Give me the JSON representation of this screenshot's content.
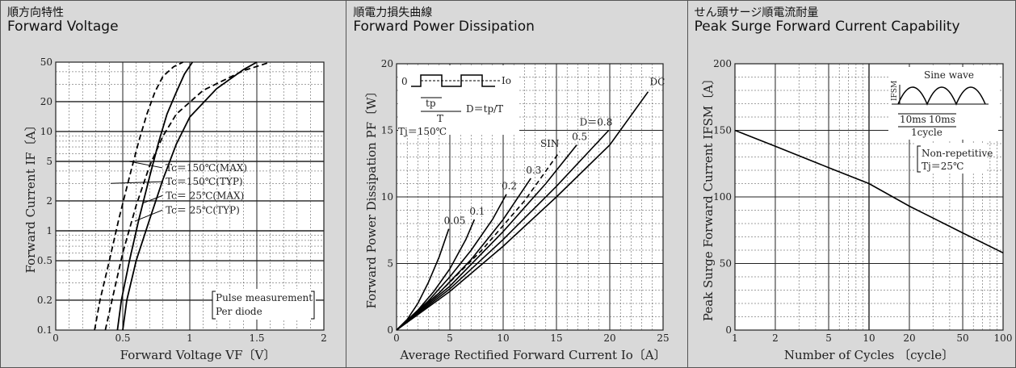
{
  "chart_data": [
    {
      "type": "line",
      "title_jp": "順方向特性",
      "title": "Forward Voltage",
      "xlabel": "Forward Voltage  VF〔V〕",
      "ylabel": "Forward Current  IF〔A〕",
      "xlim": [
        0,
        2
      ],
      "ylim": [
        0.1,
        50
      ],
      "ylog": true,
      "xticks": [
        "0",
        "0.5",
        "1",
        "1.5",
        "2"
      ],
      "yticks": [
        "0.1",
        "0.2",
        "0.5",
        "1",
        "2",
        "5",
        "10",
        "20",
        "50"
      ],
      "ytick_values": [
        0.1,
        0.2,
        0.5,
        1,
        2,
        5,
        10,
        20,
        50
      ],
      "xtick_values": [
        0,
        0.5,
        1,
        1.5,
        2
      ],
      "series": [
        {
          "name": "Tc＝150℃(MAX)",
          "dash": true,
          "x": [
            0.37,
            0.42,
            0.5,
            0.6,
            0.7,
            0.8,
            0.9,
            1.1,
            1.4,
            1.6
          ],
          "y": [
            0.1,
            0.2,
            0.6,
            1.8,
            4.5,
            9,
            15,
            26,
            41,
            50
          ]
        },
        {
          "name": "Tc＝150℃(TYP)",
          "dash": true,
          "x": [
            0.29,
            0.33,
            0.4,
            0.47,
            0.55,
            0.62,
            0.68,
            0.74,
            0.8,
            0.88,
            0.95
          ],
          "y": [
            0.1,
            0.2,
            0.5,
            1.3,
            3.5,
            8,
            15,
            25,
            36,
            45,
            50
          ]
        },
        {
          "name": "Tc＝ 25℃(MAX)",
          "dash": false,
          "x": [
            0.5,
            0.53,
            0.6,
            0.7,
            0.8,
            0.9,
            1.0,
            1.2,
            1.4,
            1.5
          ],
          "y": [
            0.1,
            0.2,
            0.5,
            1.3,
            3.3,
            7.5,
            14,
            27,
            42,
            50
          ]
        },
        {
          "name": "Tc＝ 25℃(TYP)",
          "dash": false,
          "x": [
            0.46,
            0.49,
            0.55,
            0.62,
            0.7,
            0.77,
            0.83,
            0.9,
            0.96,
            1.02
          ],
          "y": [
            0.1,
            0.2,
            0.5,
            1.3,
            3.5,
            8,
            15,
            25,
            38,
            50
          ]
        }
      ],
      "note": [
        "Pulse measurement",
        "Per diode"
      ]
    },
    {
      "type": "line",
      "title_jp": "順電力損失曲線",
      "title": "Forward Power Dissipation",
      "xlabel": "Average Rectified Forward Current  Io〔A〕",
      "ylabel": "Forward Power Dissipation  PF〔W〕",
      "xlim": [
        0,
        25
      ],
      "ylim": [
        0,
        20
      ],
      "xticks": [
        "0",
        "5",
        "10",
        "15",
        "20",
        "25"
      ],
      "yticks": [
        "0",
        "5",
        "10",
        "15",
        "20"
      ],
      "xtick_values": [
        0,
        5,
        10,
        15,
        20,
        25
      ],
      "ytick_values": [
        0,
        5,
        10,
        15,
        20
      ],
      "series": [
        {
          "name": "0.05",
          "dash": false,
          "x": [
            0,
            1,
            2,
            3,
            4,
            4.9
          ],
          "y": [
            0,
            0.8,
            2.0,
            3.6,
            5.5,
            7.6
          ]
        },
        {
          "name": "0.1",
          "dash": false,
          "x": [
            0,
            2,
            3.5,
            5,
            6.5,
            7.3
          ],
          "y": [
            0,
            1.5,
            2.9,
            4.6,
            6.8,
            8.3
          ]
        },
        {
          "name": "0.2",
          "dash": false,
          "x": [
            0,
            3,
            5,
            7,
            9,
            10.3
          ],
          "y": [
            0,
            2.2,
            4.0,
            6.0,
            8.3,
            10.2
          ]
        },
        {
          "name": "0.3",
          "dash": false,
          "x": [
            0,
            4,
            7,
            10,
            12.6
          ],
          "y": [
            0,
            2.8,
            5.3,
            8.3,
            11.4
          ]
        },
        {
          "name": "SIN",
          "dash": true,
          "x": [
            0,
            4,
            8,
            12,
            15.3
          ],
          "y": [
            0,
            2.8,
            6.0,
            9.7,
            13.4
          ]
        },
        {
          "name": "0.5",
          "dash": false,
          "x": [
            0,
            5,
            10,
            14,
            16.9
          ],
          "y": [
            0,
            3.3,
            7.4,
            11.0,
            13.9
          ]
        },
        {
          "name": "0.8",
          "dash": false,
          "x": [
            0,
            5,
            10,
            15,
            19.9
          ],
          "y": [
            0,
            3.1,
            6.8,
            10.8,
            15.0
          ]
        },
        {
          "name": "DC",
          "dash": false,
          "x": [
            0,
            5,
            10,
            15,
            20,
            23.6
          ],
          "y": [
            0,
            2.9,
            6.3,
            10.0,
            13.9,
            17.9
          ]
        }
      ],
      "inset": {
        "zero": "0",
        "io": "Io",
        "tp": "tp",
        "T": "T",
        "formula": "D＝tp/T",
        "d_label": "D＝0.8",
        "tj": "Tj＝150℃"
      }
    },
    {
      "type": "line",
      "title_jp": "せん頭サージ順電流耐量",
      "title": "Peak Surge Forward Current Capability",
      "xlabel": "Number of Cycles 〔cycle〕",
      "ylabel": "Peak Surge Forward Current  IFSM〔A〕",
      "xlim": [
        1,
        100
      ],
      "xlog": true,
      "ylim": [
        0,
        200
      ],
      "xticks": [
        "1",
        "2",
        "5",
        "10",
        "20",
        "50",
        "100"
      ],
      "xtick_values": [
        1,
        2,
        5,
        10,
        20,
        50,
        100
      ],
      "yticks": [
        "0",
        "50",
        "100",
        "150",
        "200"
      ],
      "ytick_values": [
        0,
        50,
        100,
        150,
        200
      ],
      "series": [
        {
          "name": "IFSM",
          "dash": false,
          "x": [
            1,
            2,
            5,
            10,
            20,
            50,
            100
          ],
          "y": [
            150,
            138,
            122,
            110,
            93,
            73,
            58
          ]
        }
      ],
      "inset": {
        "wave": "Sine wave",
        "ifsm": "IFSM",
        "t1": "10ms",
        "t2": "10ms",
        "cycle": "1cycle"
      },
      "note": [
        "Non-repetitive",
        "Tj＝25℃"
      ]
    }
  ]
}
